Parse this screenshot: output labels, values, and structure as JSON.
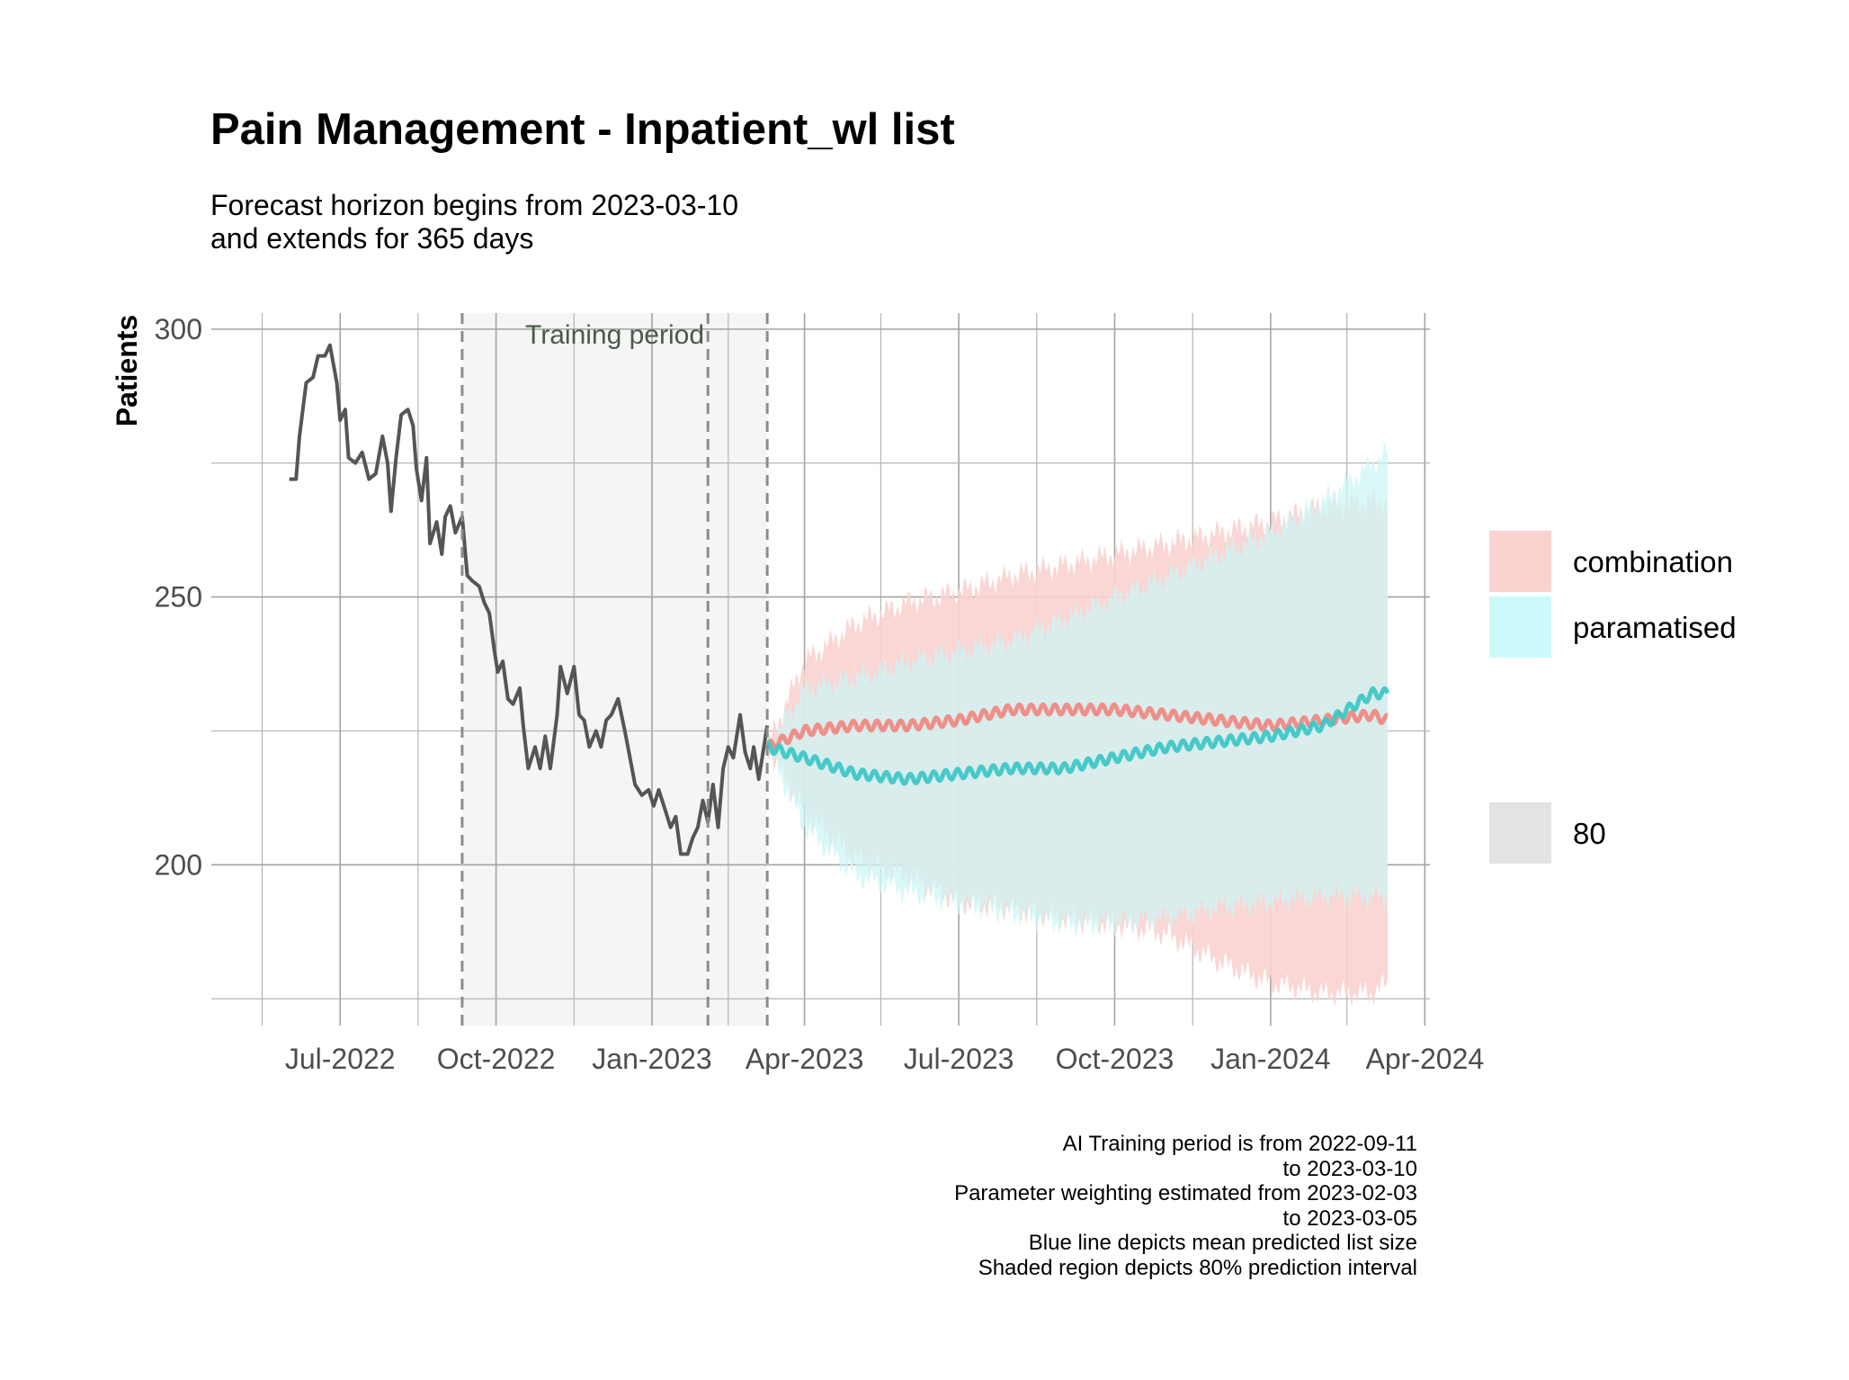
{
  "title": "Pain Management - Inpatient_wl list",
  "subtitle": "Forecast horizon begins from 2023-03-10\nand extends for 365 days",
  "caption": [
    "AI Training period is from 2022-09-11",
    "to 2023-03-10",
    "Parameter weighting estimated from 2023-02-03",
    "to 2023-03-05",
    "Blue line depicts mean predicted list size",
    "Shaded region depicts 80% prediction interval"
  ],
  "chart_data": {
    "type": "line",
    "title": "Pain Management - Inpatient_wl list",
    "xlabel": "",
    "ylabel": "Patients",
    "x_ticks": [
      "Jul-2022",
      "Oct-2022",
      "Jan-2023",
      "Apr-2023",
      "Jul-2023",
      "Oct-2023",
      "Jan-2024",
      "Apr-2024"
    ],
    "y_ticks": [
      200,
      250,
      300
    ],
    "xlim": [
      "2022-04-16",
      "2024-04-04"
    ],
    "ylim": [
      170,
      303
    ],
    "grid": true,
    "training_period": {
      "label": "Training period",
      "start": "2022-09-11",
      "end": "2023-03-10"
    },
    "parameter_window": {
      "start": "2023-02-03",
      "end": "2023-03-05"
    },
    "forecast_start": "2023-03-10",
    "observed": {
      "name": "observed",
      "color": "#555555",
      "points": [
        [
          "2022-06-01",
          272
        ],
        [
          "2022-06-05",
          272
        ],
        [
          "2022-06-07",
          280
        ],
        [
          "2022-06-11",
          290
        ],
        [
          "2022-06-15",
          291
        ],
        [
          "2022-06-18",
          295
        ],
        [
          "2022-06-22",
          295
        ],
        [
          "2022-06-25",
          297
        ],
        [
          "2022-06-29",
          290
        ],
        [
          "2022-07-01",
          283
        ],
        [
          "2022-07-04",
          285
        ],
        [
          "2022-07-06",
          276
        ],
        [
          "2022-07-10",
          275
        ],
        [
          "2022-07-14",
          277
        ],
        [
          "2022-07-18",
          272
        ],
        [
          "2022-07-22",
          273
        ],
        [
          "2022-07-26",
          280
        ],
        [
          "2022-07-29",
          275
        ],
        [
          "2022-07-31",
          266
        ],
        [
          "2022-08-03",
          276
        ],
        [
          "2022-08-06",
          284
        ],
        [
          "2022-08-10",
          285
        ],
        [
          "2022-08-13",
          282
        ],
        [
          "2022-08-15",
          274
        ],
        [
          "2022-08-18",
          268
        ],
        [
          "2022-08-21",
          276
        ],
        [
          "2022-08-23",
          260
        ],
        [
          "2022-08-27",
          264
        ],
        [
          "2022-08-30",
          258
        ],
        [
          "2022-09-01",
          265
        ],
        [
          "2022-09-04",
          267
        ],
        [
          "2022-09-07",
          262
        ],
        [
          "2022-09-11",
          265
        ],
        [
          "2022-09-14",
          254
        ],
        [
          "2022-09-17",
          253
        ],
        [
          "2022-09-21",
          252
        ],
        [
          "2022-09-24",
          249
        ],
        [
          "2022-09-27",
          247
        ],
        [
          "2022-09-30",
          240
        ],
        [
          "2022-10-02",
          236
        ],
        [
          "2022-10-05",
          238
        ],
        [
          "2022-10-08",
          231
        ],
        [
          "2022-10-11",
          230
        ],
        [
          "2022-10-15",
          233
        ],
        [
          "2022-10-17",
          226
        ],
        [
          "2022-10-20",
          218
        ],
        [
          "2022-10-24",
          222
        ],
        [
          "2022-10-27",
          218
        ],
        [
          "2022-10-30",
          224
        ],
        [
          "2022-11-02",
          218
        ],
        [
          "2022-11-06",
          228
        ],
        [
          "2022-11-08",
          237
        ],
        [
          "2022-11-12",
          232
        ],
        [
          "2022-11-16",
          237
        ],
        [
          "2022-11-19",
          228
        ],
        [
          "2022-11-22",
          227
        ],
        [
          "2022-11-25",
          222
        ],
        [
          "2022-11-29",
          225
        ],
        [
          "2022-12-02",
          222
        ],
        [
          "2022-12-05",
          227
        ],
        [
          "2022-12-08",
          228
        ],
        [
          "2022-12-12",
          231
        ],
        [
          "2022-12-16",
          225
        ],
        [
          "2022-12-19",
          220
        ],
        [
          "2022-12-22",
          215
        ],
        [
          "2022-12-26",
          213
        ],
        [
          "2022-12-30",
          214
        ],
        [
          "2023-01-02",
          211
        ],
        [
          "2023-01-05",
          214
        ],
        [
          "2023-01-09",
          210
        ],
        [
          "2023-01-12",
          207
        ],
        [
          "2023-01-15",
          209
        ],
        [
          "2023-01-18",
          202
        ],
        [
          "2023-01-22",
          202
        ],
        [
          "2023-01-25",
          205
        ],
        [
          "2023-01-28",
          207
        ],
        [
          "2023-01-31",
          212
        ],
        [
          "2023-02-03",
          208
        ],
        [
          "2023-02-06",
          215
        ],
        [
          "2023-02-09",
          207
        ],
        [
          "2023-02-12",
          218
        ],
        [
          "2023-02-15",
          222
        ],
        [
          "2023-02-18",
          220
        ],
        [
          "2023-02-22",
          228
        ],
        [
          "2023-02-25",
          221
        ],
        [
          "2023-02-28",
          218
        ],
        [
          "2023-03-02",
          222
        ],
        [
          "2023-03-05",
          216
        ],
        [
          "2023-03-07",
          220
        ],
        [
          "2023-03-10",
          226
        ]
      ]
    },
    "series": [
      {
        "name": "combination",
        "line_color": "#f08a84",
        "band_color": "#fad2cf",
        "mean": [
          [
            "2023-03-10",
            222
          ],
          [
            "2023-04-01",
            225
          ],
          [
            "2023-05-01",
            226
          ],
          [
            "2023-06-01",
            226
          ],
          [
            "2023-07-01",
            227
          ],
          [
            "2023-08-01",
            229
          ],
          [
            "2023-09-01",
            229
          ],
          [
            "2023-10-01",
            229
          ],
          [
            "2023-11-01",
            228
          ],
          [
            "2023-12-01",
            227
          ],
          [
            "2024-01-01",
            226
          ],
          [
            "2024-02-01",
            227
          ],
          [
            "2024-03-01",
            228
          ],
          [
            "2024-03-10",
            227
          ]
        ],
        "lower": [
          [
            "2023-03-10",
            222
          ],
          [
            "2023-04-01",
            210
          ],
          [
            "2023-05-01",
            201
          ],
          [
            "2023-06-01",
            198
          ],
          [
            "2023-07-01",
            193
          ],
          [
            "2023-08-01",
            192
          ],
          [
            "2023-09-01",
            190
          ],
          [
            "2023-10-01",
            189
          ],
          [
            "2023-11-01",
            187
          ],
          [
            "2023-12-01",
            182
          ],
          [
            "2024-01-01",
            178
          ],
          [
            "2024-02-01",
            176
          ],
          [
            "2024-03-01",
            176
          ],
          [
            "2024-03-10",
            178
          ]
        ],
        "upper": [
          [
            "2023-03-10",
            222
          ],
          [
            "2023-04-01",
            238
          ],
          [
            "2023-05-01",
            245
          ],
          [
            "2023-06-01",
            249
          ],
          [
            "2023-07-01",
            251
          ],
          [
            "2023-08-01",
            254
          ],
          [
            "2023-09-01",
            256
          ],
          [
            "2023-10-01",
            258
          ],
          [
            "2023-11-01",
            260
          ],
          [
            "2023-12-01",
            262
          ],
          [
            "2024-01-01",
            264
          ],
          [
            "2024-02-01",
            267
          ],
          [
            "2024-03-01",
            268
          ],
          [
            "2024-03-10",
            268
          ]
        ]
      },
      {
        "name": "paramatised",
        "line_color": "#3fc7c7",
        "band_color": "#ccf5f5",
        "mean": [
          [
            "2023-03-10",
            222
          ],
          [
            "2023-04-01",
            220
          ],
          [
            "2023-05-01",
            217
          ],
          [
            "2023-06-01",
            216
          ],
          [
            "2023-07-01",
            217
          ],
          [
            "2023-08-01",
            218
          ],
          [
            "2023-09-01",
            218
          ],
          [
            "2023-10-01",
            220
          ],
          [
            "2023-11-01",
            222
          ],
          [
            "2023-12-01",
            223
          ],
          [
            "2024-01-01",
            224
          ],
          [
            "2024-02-01",
            226
          ],
          [
            "2024-03-01",
            232
          ],
          [
            "2024-03-10",
            232
          ]
        ],
        "lower": [
          [
            "2023-03-10",
            222
          ],
          [
            "2023-04-01",
            207
          ],
          [
            "2023-05-01",
            198
          ],
          [
            "2023-06-01",
            195
          ],
          [
            "2023-07-01",
            193
          ],
          [
            "2023-08-01",
            191
          ],
          [
            "2023-09-01",
            189
          ],
          [
            "2023-10-01",
            189
          ],
          [
            "2023-11-01",
            190
          ],
          [
            "2023-12-01",
            192
          ],
          [
            "2024-01-01",
            193
          ],
          [
            "2024-02-01",
            194
          ],
          [
            "2024-03-01",
            194
          ],
          [
            "2024-03-10",
            194
          ]
        ],
        "upper": [
          [
            "2023-03-10",
            222
          ],
          [
            "2023-04-01",
            233
          ],
          [
            "2023-05-01",
            235
          ],
          [
            "2023-06-01",
            238
          ],
          [
            "2023-07-01",
            240
          ],
          [
            "2023-08-01",
            242
          ],
          [
            "2023-09-01",
            246
          ],
          [
            "2023-10-01",
            250
          ],
          [
            "2023-11-01",
            254
          ],
          [
            "2023-12-01",
            258
          ],
          [
            "2024-01-01",
            262
          ],
          [
            "2024-02-01",
            268
          ],
          [
            "2024-03-01",
            275
          ],
          [
            "2024-03-10",
            277
          ]
        ]
      }
    ],
    "legend": {
      "position": "right",
      "items": [
        {
          "label": "combination",
          "color": "#fad2cf"
        },
        {
          "label": "paramatised",
          "color": "#ccfafa"
        }
      ],
      "interval_key": {
        "label": "80",
        "color": "#e3e3e3"
      }
    }
  }
}
